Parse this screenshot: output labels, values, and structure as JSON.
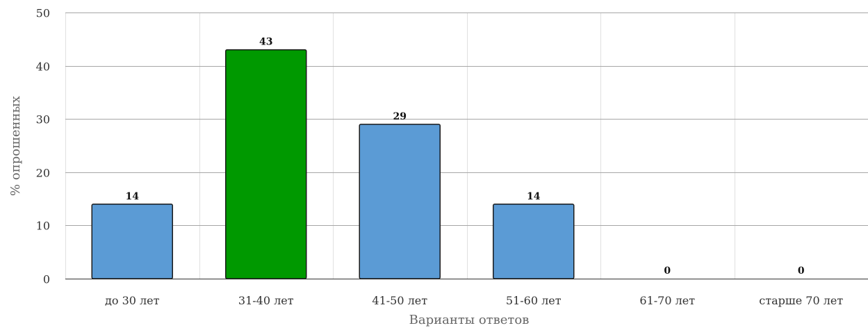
{
  "chart_data": {
    "type": "bar",
    "categories": [
      "до 30 лет",
      "31-40 лет",
      "41-50 лет",
      "51-60 лет",
      "61-70 лет",
      "старше 70 лет"
    ],
    "values": [
      14,
      43,
      29,
      14,
      0,
      0
    ],
    "data_labels": [
      "14",
      "43",
      "29",
      "14",
      "0",
      "0"
    ],
    "xlabel": "Варианты ответов",
    "ylabel": "% опрошенных",
    "ylim": [
      0,
      50
    ],
    "yticks": [
      0,
      10,
      20,
      30,
      40,
      50
    ],
    "ytick_labels": [
      "0",
      "10",
      "20",
      "30",
      "40",
      "50"
    ],
    "grid": true,
    "colors": {
      "default_bar": "#5b9bd5",
      "highlight_bar": "#009900",
      "bar_stroke": "#1a1a1a",
      "grid_horizontal": "#a6a6a6",
      "grid_vertical": "#e0e0e0"
    },
    "highlight_index": 1
  }
}
